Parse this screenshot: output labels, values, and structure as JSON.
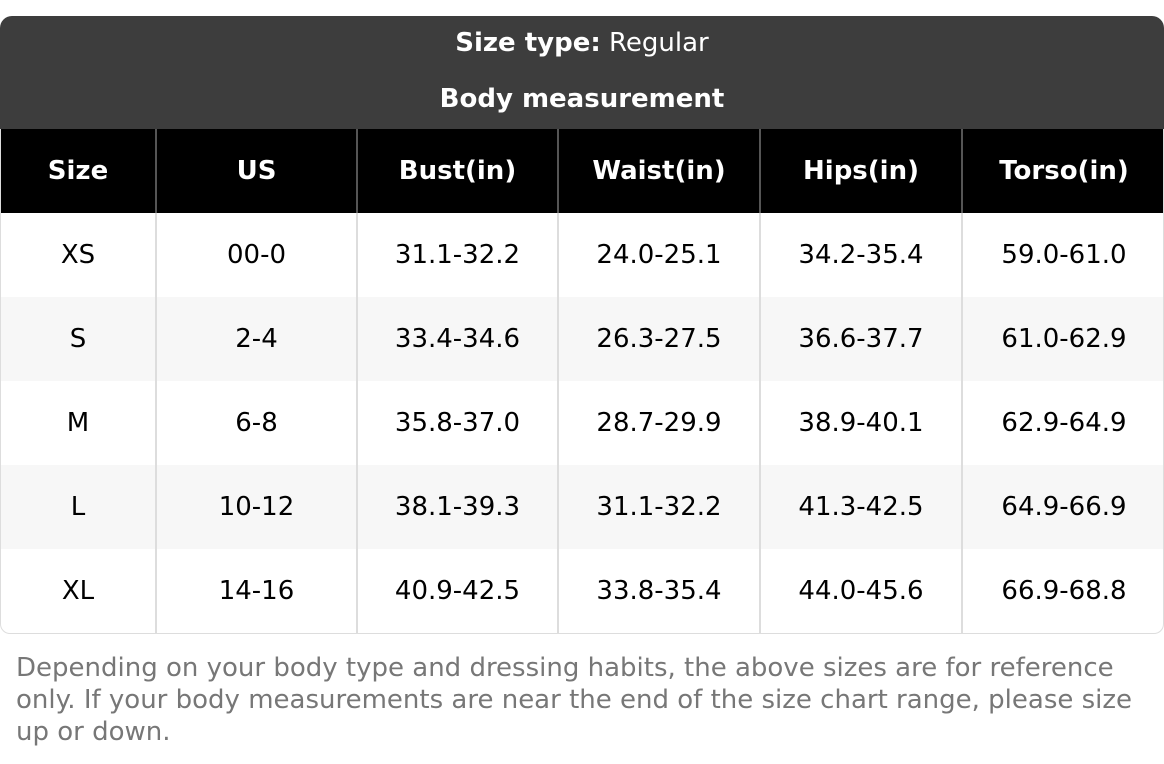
{
  "header": {
    "size_type_label": "Size type:",
    "size_type_value": "Regular",
    "title": "Body measurement"
  },
  "table": {
    "columns": [
      "Size",
      "US",
      "Bust(in)",
      "Waist(in)",
      "Hips(in)",
      "Torso(in)"
    ],
    "rows": [
      [
        "XS",
        "00-0",
        "31.1-32.2",
        "24.0-25.1",
        "34.2-35.4",
        "59.0-61.0"
      ],
      [
        "S",
        "2-4",
        "33.4-34.6",
        "26.3-27.5",
        "36.6-37.7",
        "61.0-62.9"
      ],
      [
        "M",
        "6-8",
        "35.8-37.0",
        "28.7-29.9",
        "38.9-40.1",
        "62.9-64.9"
      ],
      [
        "L",
        "10-12",
        "38.1-39.3",
        "31.1-32.2",
        "41.3-42.5",
        "64.9-66.9"
      ],
      [
        "XL",
        "14-16",
        "40.9-42.5",
        "33.8-35.4",
        "44.0-45.6",
        "66.9-68.8"
      ]
    ]
  },
  "note": "Depending on your body type and dressing habits, the above sizes are for reference only. If your body measurements are near the end of the size chart range, please size up or down."
}
